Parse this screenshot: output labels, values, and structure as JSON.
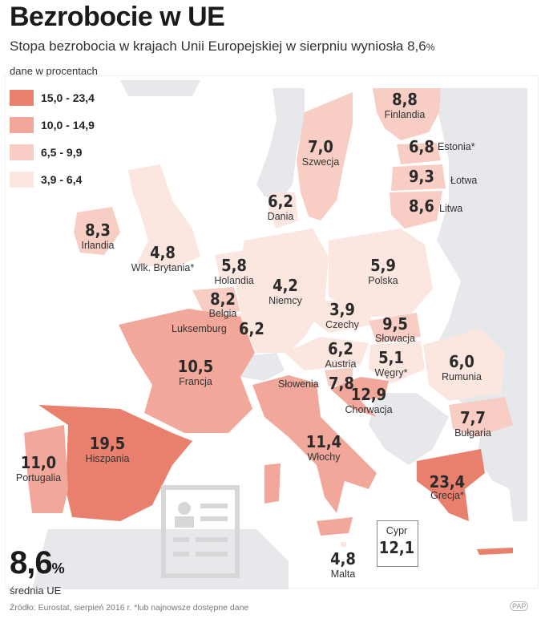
{
  "header": {
    "title": "Bezrobocie w UE",
    "subtitle": "Stopa bezrobocia w krajach Unii Europejskiej w sierpniu wyniosła 8,6",
    "subtitle_unit": "%",
    "unit_note": "dane w procentach"
  },
  "legend": [
    {
      "label": "15,0 - 23,4",
      "color": "#e9806e"
    },
    {
      "label": "10,0 - 14,9",
      "color": "#f1a79a"
    },
    {
      "label": "6,5 - 9,9",
      "color": "#f7cdc4"
    },
    {
      "label": "3,9 - 6,4",
      "color": "#fbe6e0"
    }
  ],
  "colors": {
    "water": "#ffffff",
    "non_eu": "#e6e8ec",
    "border": "#ffffff"
  },
  "countries": {
    "finlandia": {
      "name": "Finlandia",
      "value": "8,8"
    },
    "estonia": {
      "name": "Estonia*",
      "value": "6,8"
    },
    "lotwa": {
      "name": "Łotwa",
      "value": "9,3"
    },
    "litwa": {
      "name": "Litwa",
      "value": "8,6"
    },
    "szwecja": {
      "name": "Szwecja",
      "value": "7,0"
    },
    "dania": {
      "name": "Dania",
      "value": "6,2"
    },
    "irlandia": {
      "name": "Irlandia",
      "value": "8,3"
    },
    "wlk_brytania": {
      "name": "Wlk. Brytania*",
      "value": "4,8"
    },
    "holandia": {
      "name": "Holandia",
      "value": "5,8"
    },
    "niemcy": {
      "name": "Niemcy",
      "value": "4,2"
    },
    "polska": {
      "name": "Polska",
      "value": "5,9"
    },
    "belgia": {
      "name": "Belgia",
      "value": "8,2"
    },
    "luksemburg": {
      "name": "Luksemburg",
      "value": "6,2"
    },
    "czechy": {
      "name": "Czechy",
      "value": "3,9"
    },
    "slowacja": {
      "name": "Słowacja",
      "value": "9,5"
    },
    "austria": {
      "name": "Austria",
      "value": "6,2"
    },
    "wegry": {
      "name": "Węgry*",
      "value": "5,1"
    },
    "rumunia": {
      "name": "Rumunia",
      "value": "6,0"
    },
    "francja": {
      "name": "Francja",
      "value": "10,5"
    },
    "slowenia": {
      "name": "Słowenia",
      "value": "7,8"
    },
    "chorwacja": {
      "name": "Chorwacja",
      "value": "12,9"
    },
    "bulgaria": {
      "name": "Bułgaria",
      "value": "7,7"
    },
    "hiszpania": {
      "name": "Hiszpania",
      "value": "19,5"
    },
    "portugalia": {
      "name": "Portugalia",
      "value": "11,0"
    },
    "wlochy": {
      "name": "Włochy",
      "value": "11,4"
    },
    "grecja": {
      "name": "Grecja*",
      "value": "23,4"
    },
    "cypr": {
      "name": "Cypr",
      "value": "12,1"
    },
    "malta": {
      "name": "Malta",
      "value": "4,8"
    }
  },
  "average": {
    "value": "8,6",
    "unit": "%",
    "label": "średnia UE"
  },
  "source": "Źródło: Eurostat, sierpień 2016 r. *lub najnowsze dostępne dane",
  "agency": "PAP"
}
